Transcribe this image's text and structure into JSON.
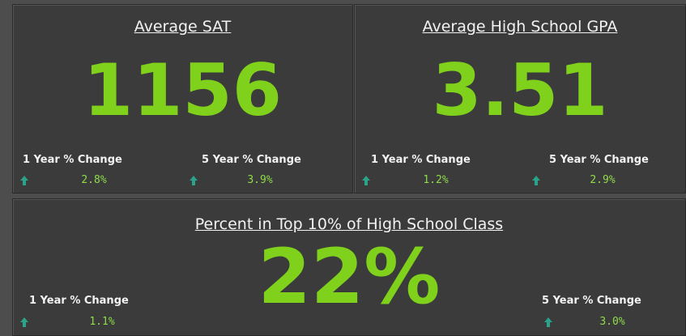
{
  "cards": [
    {
      "title": "Average SAT",
      "value": "1156",
      "changes": [
        {
          "label": "1 Year % Change",
          "value": "2.8%"
        },
        {
          "label": "5 Year % Change",
          "value": "3.9%"
        }
      ]
    },
    {
      "title": "Average High School GPA",
      "value": "3.51",
      "changes": [
        {
          "label": "1 Year % Change",
          "value": "1.2%"
        },
        {
          "label": "5 Year % Change",
          "value": "2.9%"
        }
      ]
    },
    {
      "title": "Percent in Top 10% of High School Class",
      "value": "22%",
      "changes": [
        {
          "label": "1 Year % Change",
          "value": "1.1%"
        },
        {
          "label": "5 Year % Change",
          "value": "3.0%"
        }
      ]
    }
  ]
}
